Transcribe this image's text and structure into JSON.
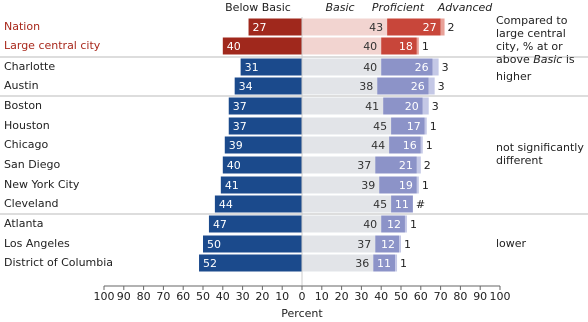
{
  "chart_data": {
    "type": "diverging-bar",
    "categories": [
      "Nation",
      "Large central city",
      "Charlotte",
      "Austin",
      "Boston",
      "Houston",
      "Chicago",
      "San Diego",
      "New York City",
      "Cleveland",
      "Atlanta",
      "Los Angeles",
      "District of Columbia"
    ],
    "category_colors": [
      "#a8281c",
      "#a8281c",
      "#222",
      "#222",
      "#222",
      "#222",
      "#222",
      "#222",
      "#222",
      "#222",
      "#222",
      "#222",
      "#222"
    ],
    "series": [
      {
        "name": "Below Basic",
        "values": [
          27,
          40,
          31,
          34,
          37,
          37,
          39,
          40,
          41,
          44,
          47,
          50,
          52
        ],
        "colors": [
          "#a0281c",
          "#a0281c",
          "#1b4a8c",
          "#1b4a8c",
          "#1b4a8c",
          "#1b4a8c",
          "#1b4a8c",
          "#1b4a8c",
          "#1b4a8c",
          "#1b4a8c",
          "#1b4a8c",
          "#1b4a8c",
          "#1b4a8c"
        ]
      },
      {
        "name": "Basic",
        "values": [
          43,
          40,
          40,
          38,
          41,
          45,
          44,
          37,
          39,
          45,
          40,
          37,
          36
        ],
        "colors": [
          "#f2d4d0",
          "#f2d4d0",
          "#e2e4e8",
          "#e2e4e8",
          "#e2e4e8",
          "#e2e4e8",
          "#e2e4e8",
          "#e2e4e8",
          "#e2e4e8",
          "#e2e4e8",
          "#e2e4e8",
          "#e2e4e8",
          "#e2e4e8"
        ]
      },
      {
        "name": "Proficient",
        "values": [
          27,
          18,
          26,
          26,
          20,
          17,
          16,
          21,
          19,
          11,
          12,
          12,
          11
        ],
        "colors": [
          "#c8463a",
          "#c8463a",
          "#8c93c8",
          "#8c93c8",
          "#8c93c8",
          "#8c93c8",
          "#8c93c8",
          "#8c93c8",
          "#8c93c8",
          "#8c93c8",
          "#8c93c8",
          "#8c93c8",
          "#8c93c8"
        ]
      },
      {
        "name": "Advanced",
        "values": [
          2,
          1,
          3,
          3,
          3,
          1,
          1,
          2,
          1,
          0,
          1,
          1,
          1
        ],
        "value_labels": [
          "2",
          "1",
          "3",
          "3",
          "3",
          "1",
          "1",
          "2",
          "1",
          "#",
          "1",
          "1",
          "1"
        ],
        "colors": [
          "#e8a198",
          "#e8a198",
          "#c4c8e6",
          "#c4c8e6",
          "#c4c8e6",
          "#c4c8e6",
          "#c4c8e6",
          "#c4c8e6",
          "#c4c8e6",
          "#c4c8e6",
          "#c4c8e6",
          "#c4c8e6",
          "#c4c8e6"
        ]
      }
    ],
    "xlim": [
      -100,
      100
    ],
    "xticks": [
      {
        "value": -100,
        "label": "100"
      },
      {
        "value": -90,
        "label": "90"
      },
      {
        "value": -80,
        "label": "80"
      },
      {
        "value": -70,
        "label": "70"
      },
      {
        "value": -60,
        "label": "60"
      },
      {
        "value": -50,
        "label": "50"
      },
      {
        "value": -40,
        "label": "40"
      },
      {
        "value": -30,
        "label": "30"
      },
      {
        "value": -20,
        "label": "20"
      },
      {
        "value": -10,
        "label": "10"
      },
      0,
      10,
      20,
      30,
      40,
      50,
      60,
      70,
      80,
      90,
      100
    ],
    "x_label": "Percent",
    "annotation": [
      "Compared to large central city, % at or above ",
      "Basic",
      " is"
    ],
    "groups": [
      "higher",
      "not significantly different",
      "lower"
    ]
  }
}
